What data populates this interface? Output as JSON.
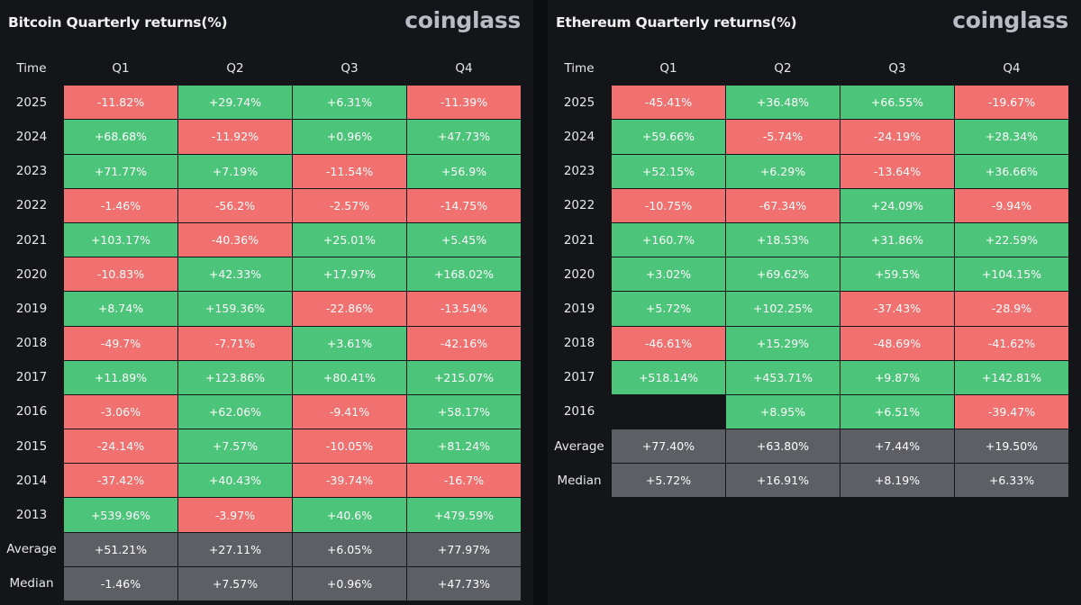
{
  "colors": {
    "positive": "#4cc47a",
    "negative": "#f0716f",
    "summary": "#5d5f65",
    "background": "#141519"
  },
  "chart_data": [
    {
      "type": "table",
      "id": "btc",
      "title": "Bitcoin Quarterly returns(%)",
      "brand": "coinglass",
      "columns": [
        "Time",
        "Q1",
        "Q2",
        "Q3",
        "Q4"
      ],
      "rows": [
        {
          "label": "2025",
          "values": [
            "-11.82%",
            "+29.74%",
            "+6.31%",
            "-11.39%"
          ]
        },
        {
          "label": "2024",
          "values": [
            "+68.68%",
            "-11.92%",
            "+0.96%",
            "+47.73%"
          ]
        },
        {
          "label": "2023",
          "values": [
            "+71.77%",
            "+7.19%",
            "-11.54%",
            "+56.9%"
          ]
        },
        {
          "label": "2022",
          "values": [
            "-1.46%",
            "-56.2%",
            "-2.57%",
            "-14.75%"
          ]
        },
        {
          "label": "2021",
          "values": [
            "+103.17%",
            "-40.36%",
            "+25.01%",
            "+5.45%"
          ]
        },
        {
          "label": "2020",
          "values": [
            "-10.83%",
            "+42.33%",
            "+17.97%",
            "+168.02%"
          ]
        },
        {
          "label": "2019",
          "values": [
            "+8.74%",
            "+159.36%",
            "-22.86%",
            "-13.54%"
          ]
        },
        {
          "label": "2018",
          "values": [
            "-49.7%",
            "-7.71%",
            "+3.61%",
            "-42.16%"
          ]
        },
        {
          "label": "2017",
          "values": [
            "+11.89%",
            "+123.86%",
            "+80.41%",
            "+215.07%"
          ]
        },
        {
          "label": "2016",
          "values": [
            "-3.06%",
            "+62.06%",
            "-9.41%",
            "+58.17%"
          ]
        },
        {
          "label": "2015",
          "values": [
            "-24.14%",
            "+7.57%",
            "-10.05%",
            "+81.24%"
          ]
        },
        {
          "label": "2014",
          "values": [
            "-37.42%",
            "+40.43%",
            "-39.74%",
            "-16.7%"
          ]
        },
        {
          "label": "2013",
          "values": [
            "+539.96%",
            "-3.97%",
            "+40.6%",
            "+479.59%"
          ]
        }
      ],
      "summary": [
        {
          "label": "Average",
          "values": [
            "+51.21%",
            "+27.11%",
            "+6.05%",
            "+77.97%"
          ]
        },
        {
          "label": "Median",
          "values": [
            "-1.46%",
            "+7.57%",
            "+0.96%",
            "+47.73%"
          ]
        }
      ]
    },
    {
      "type": "table",
      "id": "eth",
      "title": "Ethereum Quarterly returns(%)",
      "brand": "coinglass",
      "columns": [
        "Time",
        "Q1",
        "Q2",
        "Q3",
        "Q4"
      ],
      "rows": [
        {
          "label": "2025",
          "values": [
            "-45.41%",
            "+36.48%",
            "+66.55%",
            "-19.67%"
          ]
        },
        {
          "label": "2024",
          "values": [
            "+59.66%",
            "-5.74%",
            "-24.19%",
            "+28.34%"
          ]
        },
        {
          "label": "2023",
          "values": [
            "+52.15%",
            "+6.29%",
            "-13.64%",
            "+36.66%"
          ]
        },
        {
          "label": "2022",
          "values": [
            "-10.75%",
            "-67.34%",
            "+24.09%",
            "-9.94%"
          ]
        },
        {
          "label": "2021",
          "values": [
            "+160.7%",
            "+18.53%",
            "+31.86%",
            "+22.59%"
          ]
        },
        {
          "label": "2020",
          "values": [
            "+3.02%",
            "+69.62%",
            "+59.5%",
            "+104.15%"
          ]
        },
        {
          "label": "2019",
          "values": [
            "+5.72%",
            "+102.25%",
            "-37.43%",
            "-28.9%"
          ]
        },
        {
          "label": "2018",
          "values": [
            "-46.61%",
            "+15.29%",
            "-48.69%",
            "-41.62%"
          ]
        },
        {
          "label": "2017",
          "values": [
            "+518.14%",
            "+453.71%",
            "+9.87%",
            "+142.81%"
          ]
        },
        {
          "label": "2016",
          "values": [
            "",
            "+8.95%",
            "+6.51%",
            "-39.47%"
          ]
        }
      ],
      "summary": [
        {
          "label": "Average",
          "values": [
            "+77.40%",
            "+63.80%",
            "+7.44%",
            "+19.50%"
          ]
        },
        {
          "label": "Median",
          "values": [
            "+5.72%",
            "+16.91%",
            "+8.19%",
            "+6.33%"
          ]
        }
      ]
    }
  ]
}
